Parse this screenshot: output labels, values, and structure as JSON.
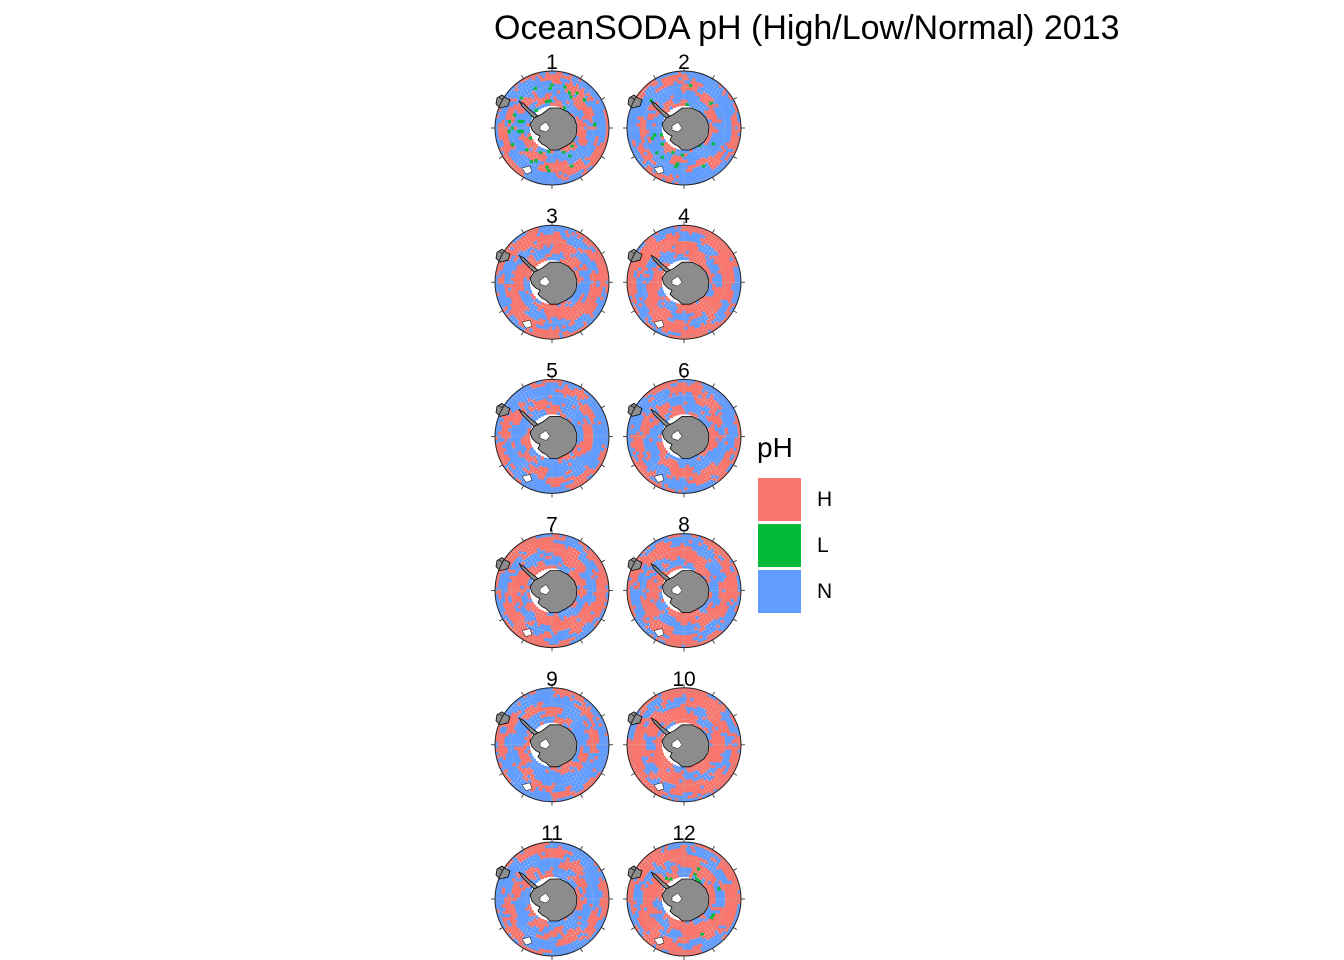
{
  "title": "OceanSODA pH (High/Low/Normal) 2013",
  "colors": {
    "H": "#F8766D",
    "L": "#00BA38",
    "N": "#619CFF",
    "land": "#8c8c8c",
    "ice": "#ffffff",
    "outline": "#000000",
    "graticule": "#bdbdbd"
  },
  "legend": {
    "title": "pH",
    "items": [
      {
        "key": "H",
        "label": "H"
      },
      {
        "key": "L",
        "label": "L"
      },
      {
        "key": "N",
        "label": "N"
      }
    ]
  },
  "panels": [
    {
      "label": "1",
      "high_share": 0.45,
      "low_share": 0.03
    },
    {
      "label": "2",
      "high_share": 0.38,
      "low_share": 0.01
    },
    {
      "label": "3",
      "high_share": 0.55,
      "low_share": 0.0
    },
    {
      "label": "4",
      "high_share": 0.6,
      "low_share": 0.0
    },
    {
      "label": "5",
      "high_share": 0.42,
      "low_share": 0.0
    },
    {
      "label": "6",
      "high_share": 0.48,
      "low_share": 0.0
    },
    {
      "label": "7",
      "high_share": 0.58,
      "low_share": 0.0
    },
    {
      "label": "8",
      "high_share": 0.55,
      "low_share": 0.0
    },
    {
      "label": "9",
      "high_share": 0.4,
      "low_share": 0.0
    },
    {
      "label": "10",
      "high_share": 0.62,
      "low_share": 0.0
    },
    {
      "label": "11",
      "high_share": 0.45,
      "low_share": 0.0
    },
    {
      "label": "12",
      "high_share": 0.6,
      "low_share": 0.01
    }
  ]
}
